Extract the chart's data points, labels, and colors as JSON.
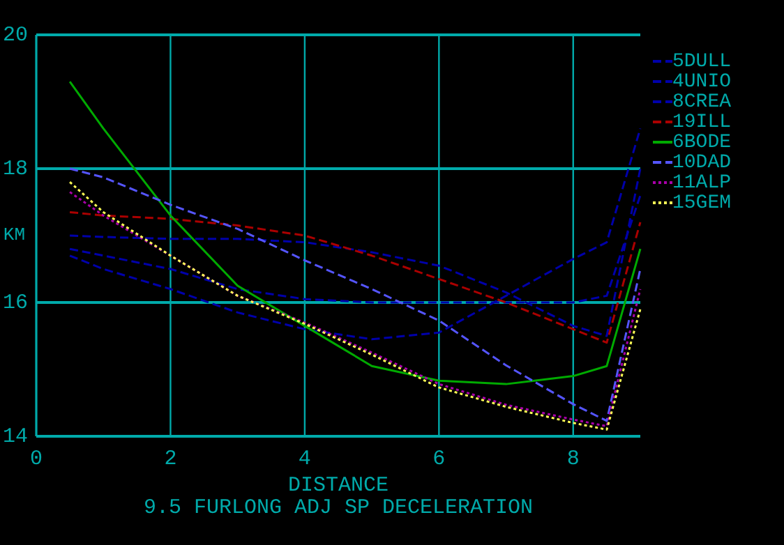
{
  "chart_data": {
    "type": "line",
    "title": "9.5 FURLONG ADJ SP DECELERATION",
    "xlabel": "DISTANCE",
    "ylabel": "KM",
    "x": [
      0.5,
      1,
      2,
      3,
      4,
      5,
      6,
      7,
      8,
      8.5,
      9
    ],
    "series": [
      {
        "name": "5DULL",
        "color": "#0000aa",
        "line_style": "dashed",
        "values": [
          16.7,
          16.5,
          16.2,
          15.85,
          15.6,
          15.45,
          15.55,
          16.1,
          16.65,
          16.9,
          18.6
        ]
      },
      {
        "name": "4UNIO",
        "color": "#0000aa",
        "line_style": "dashed",
        "values": [
          17.0,
          16.98,
          16.95,
          16.95,
          16.9,
          16.75,
          16.55,
          16.15,
          15.65,
          15.5,
          18.0
        ]
      },
      {
        "name": "8CREA",
        "color": "#0000aa",
        "line_style": "dashed",
        "values": [
          16.8,
          16.7,
          16.5,
          16.2,
          16.05,
          16.0,
          16.0,
          16.0,
          16.0,
          16.1,
          17.6
        ]
      },
      {
        "name": "19ILL",
        "color": "#aa0000",
        "line_style": "dashed",
        "values": [
          17.35,
          17.3,
          17.25,
          17.15,
          17.0,
          16.7,
          16.35,
          16.0,
          15.6,
          15.4,
          17.2
        ]
      },
      {
        "name": "6BODE",
        "color": "#00aa00",
        "line_style": "solid",
        "values": [
          19.3,
          18.6,
          17.3,
          16.25,
          15.65,
          15.05,
          14.83,
          14.78,
          14.9,
          15.05,
          16.8
        ]
      },
      {
        "name": "10DAD",
        "color": "#5555ff",
        "line_style": "dashed",
        "values": [
          18.0,
          17.87,
          17.46,
          17.1,
          16.63,
          16.2,
          15.73,
          15.06,
          14.48,
          14.23,
          16.5
        ]
      },
      {
        "name": "11ALP",
        "color": "#aa00aa",
        "line_style": "dotted",
        "values": [
          17.65,
          17.3,
          16.7,
          16.1,
          15.7,
          15.25,
          14.78,
          14.47,
          14.25,
          14.15,
          16.2
        ]
      },
      {
        "name": "15GEM",
        "color": "#ffff55",
        "line_style": "dotted",
        "values": [
          17.8,
          17.35,
          16.7,
          16.1,
          15.68,
          15.22,
          14.73,
          14.44,
          14.2,
          14.1,
          15.9
        ]
      }
    ],
    "xlim": [
      0,
      9
    ],
    "xticks": [
      0,
      2,
      4,
      6,
      8
    ],
    "ylim": [
      14,
      20
    ],
    "yticks": [
      14,
      16,
      18,
      20
    ],
    "grid": true,
    "legend": "right"
  }
}
